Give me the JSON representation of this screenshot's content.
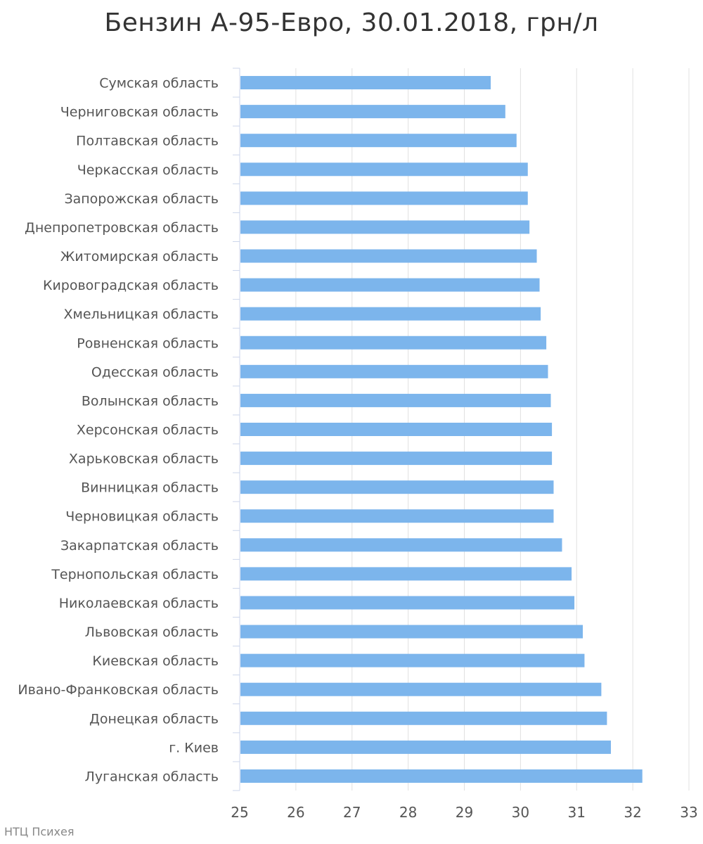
{
  "chart_data": {
    "type": "bar",
    "orientation": "horizontal",
    "title": "Бензин А-95-Евро, 30.01.2018, грн/л",
    "xlabel": "",
    "ylabel": "",
    "xlim": [
      25,
      33
    ],
    "x_ticks": [
      "25",
      "26",
      "27",
      "28",
      "29",
      "30",
      "31",
      "32",
      "33"
    ],
    "grid": "vertical",
    "bar_color": "#7cb5ec",
    "categories": [
      "Сумская область",
      "Черниговская область",
      "Полтавская область",
      "Черкасская область",
      "Запорожская область",
      "Днепропетровская область",
      "Житомирская область",
      "Кировоградская область",
      "Хмельницкая область",
      "Ровненская область",
      "Одесская область",
      "Волынская область",
      "Херсонская область",
      "Харьковская область",
      "Винницкая область",
      "Черновицкая область",
      "Закарпатская область",
      "Тернопольская область",
      "Николаевская область",
      "Львовская область",
      "Киевская область",
      "Ивано-Франковская область",
      "Донецкая область",
      "г. Киев",
      "Луганская область"
    ],
    "values": [
      29.47,
      29.73,
      29.93,
      30.13,
      30.13,
      30.16,
      30.29,
      30.34,
      30.36,
      30.46,
      30.49,
      30.54,
      30.56,
      30.56,
      30.59,
      30.59,
      30.74,
      30.91,
      30.96,
      31.11,
      31.14,
      31.44,
      31.54,
      31.61,
      32.17
    ]
  },
  "credit": "НТЦ Психея"
}
